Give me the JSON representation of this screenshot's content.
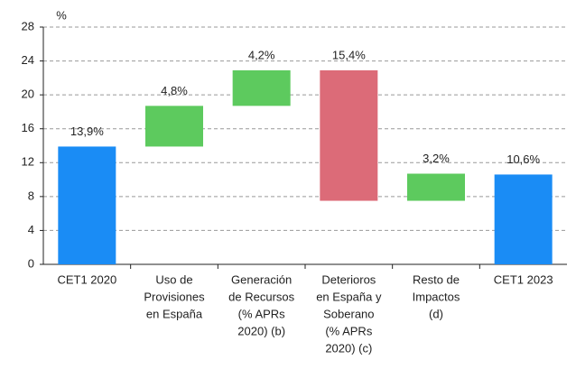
{
  "chart_data": {
    "type": "waterfall",
    "y_label": "%",
    "categories": [
      [
        "CET1 2020"
      ],
      [
        "Uso de",
        "Provisiones",
        "en España"
      ],
      [
        "Generación",
        "de Recursos",
        "(% APRs",
        "2020) (b)"
      ],
      [
        "Deterioros",
        "en España y",
        "Soberano",
        "(% APRs",
        "2020) (c)"
      ],
      [
        "Resto de",
        "Impactos",
        "(d)"
      ],
      [
        "CET1 2023"
      ]
    ],
    "values": [
      13.9,
      4.8,
      4.2,
      15.4,
      3.2,
      10.6
    ],
    "value_labels": [
      "13,9%",
      "4,8%",
      "4,2%",
      "15,4%",
      "3,2%",
      "10,6%"
    ],
    "measures": [
      "total",
      "increase",
      "increase",
      "decrease",
      "increase",
      "total"
    ],
    "colors": {
      "total": "#1a8cf5",
      "increase": "#5dca5e",
      "decrease": "#dc6b78"
    },
    "ylim": [
      0,
      28
    ],
    "yticks": [
      0,
      4,
      8,
      12,
      16,
      20,
      24,
      28
    ],
    "grid": true
  }
}
